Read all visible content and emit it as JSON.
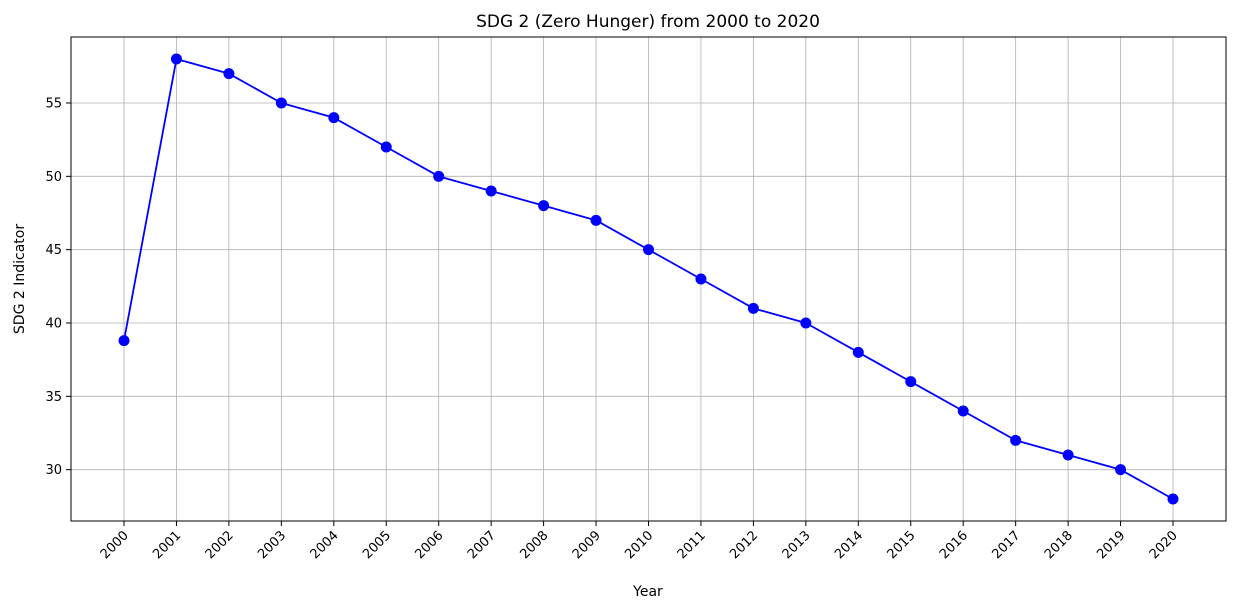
{
  "chart_data": {
    "type": "line",
    "title": "SDG 2 (Zero Hunger) from 2000 to 2020",
    "xlabel": "Year",
    "ylabel": "SDG 2 Indicator",
    "x": [
      "2000",
      "2001",
      "2002",
      "2003",
      "2004",
      "2005",
      "2006",
      "2007",
      "2008",
      "2009",
      "2010",
      "2011",
      "2012",
      "2013",
      "2014",
      "2015",
      "2016",
      "2017",
      "2018",
      "2019",
      "2020"
    ],
    "series": [
      {
        "values": [
          38.8,
          58,
          57,
          55,
          54,
          52,
          50,
          49,
          48,
          47,
          45,
          43,
          41,
          40,
          38,
          36,
          34,
          32,
          31,
          30,
          28
        ],
        "color": "#0000ff",
        "marker": "circle"
      }
    ],
    "ylim": [
      26.5,
      59.5
    ],
    "yticks": [
      30,
      35,
      40,
      45,
      50,
      55
    ],
    "grid": true,
    "legend": "none"
  }
}
